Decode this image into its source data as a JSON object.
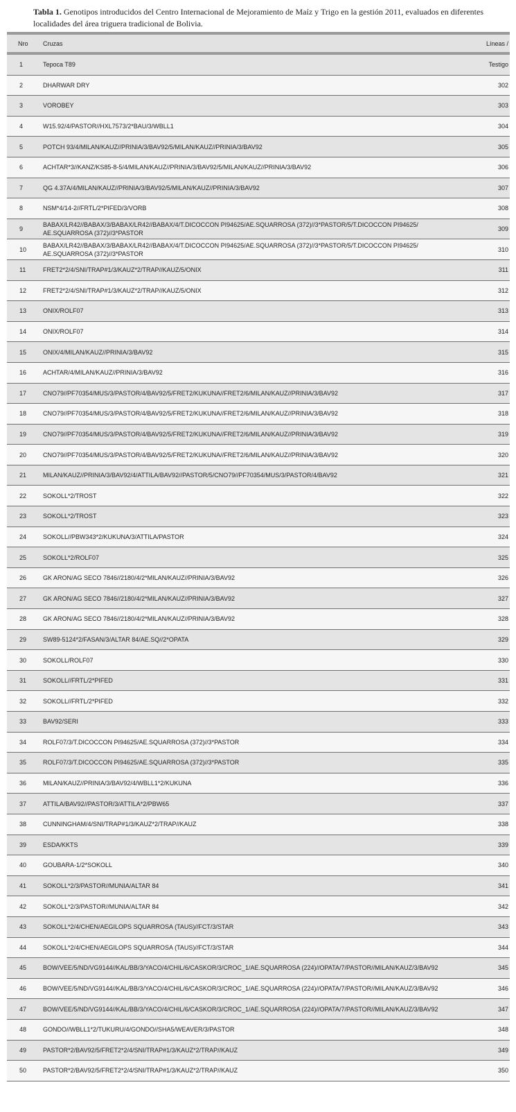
{
  "caption": {
    "label": "Tabla 1.",
    "text": " Genotipos introducidos del Centro Internacional de Mejoramiento de Maíz y Trigo en la gestión 2011, evaluados en diferentes localidades del área triguera tradicional de Bolivia."
  },
  "table": {
    "headers": [
      "Nro",
      "Cruzas",
      "Líneas /"
    ],
    "rows": [
      [
        "1",
        "Tepoca T89",
        "Testigo"
      ],
      [
        "2",
        "DHARWAR DRY",
        "302"
      ],
      [
        "3",
        "VOROBEY",
        "303"
      ],
      [
        "4",
        "W15.92/4/PASTOR//HXL7573/2*BAU/3/WBLL1",
        "304"
      ],
      [
        "5",
        "POTCH 93/4/MILAN/KAUZ//PRINIA/3/BAV92/5/MILAN/KAUZ//PRINIA/3/BAV92",
        "305"
      ],
      [
        "6",
        "ACHTAR*3//KANZ/KS85-8-5/4/MILAN/KAUZ//PRINIA/3/BAV92/5/MILAN/KAUZ//PRINIA/3/BAV92",
        "306"
      ],
      [
        "7",
        "QG 4.37A/4/MILAN/KAUZ//PRINIA/3/BAV92/5/MILAN/KAUZ//PRINIA/3/BAV92",
        "307"
      ],
      [
        "8",
        "NSM*4/14-2//FRTL/2*PIFED/3/VORB",
        "308"
      ],
      [
        "9",
        "BABAX/LR42//BABAX/3/BABAX/LR42//BABAX/4/T.DICOCCON PI94625/AE.SQUARROSA (372)//3*PASTOR/5/T.DICOCCON PI94625/ AE.SQUARROSA (372)//3*PASTOR",
        "309"
      ],
      [
        "10",
        "BABAX/LR42//BABAX/3/BABAX/LR42//BABAX/4/T.DICOCCON PI94625/AE.SQUARROSA (372)//3*PASTOR/5/T.DICOCCON PI94625/ AE.SQUARROSA (372)//3*PASTOR",
        "310"
      ],
      [
        "11",
        "FRET2*2/4/SNI/TRAP#1/3/KAUZ*2/TRAP//KAUZ/5/ONIX",
        "311"
      ],
      [
        "12",
        "FRET2*2/4/SNI/TRAP#1/3/KAUZ*2/TRAP//KAUZ/5/ONIX",
        "312"
      ],
      [
        "13",
        "ONIX/ROLF07",
        "313"
      ],
      [
        "14",
        "ONIX/ROLF07",
        "314"
      ],
      [
        "15",
        "ONIX/4/MILAN/KAUZ//PRINIA/3/BAV92",
        "315"
      ],
      [
        "16",
        "ACHTAR/4/MILAN/KAUZ//PRINIA/3/BAV92",
        "316"
      ],
      [
        "17",
        "CNO79//PF70354/MUS/3/PASTOR/4/BAV92/5/FRET2/KUKUNA//FRET2/6/MILAN/KAUZ//PRINIA/3/BAV92",
        "317"
      ],
      [
        "18",
        "CNO79//PF70354/MUS/3/PASTOR/4/BAV92/5/FRET2/KUKUNA//FRET2/6/MILAN/KAUZ//PRINIA/3/BAV92",
        "318"
      ],
      [
        "19",
        "CNO79//PF70354/MUS/3/PASTOR/4/BAV92/5/FRET2/KUKUNA//FRET2/6/MILAN/KAUZ//PRINIA/3/BAV92",
        "319"
      ],
      [
        "20",
        "CNO79//PF70354/MUS/3/PASTOR/4/BAV92/5/FRET2/KUKUNA//FRET2/6/MILAN/KAUZ//PRINIA/3/BAV92",
        "320"
      ],
      [
        "21",
        "MILAN/KAUZ//PRINIA/3/BAV92/4/ATTILA/BAV92//PASTOR/5/CNO79//PF70354/MUS/3/PASTOR/4/BAV92",
        "321"
      ],
      [
        "22",
        "SOKOLL*2/TROST",
        "322"
      ],
      [
        "23",
        "SOKOLL*2/TROST",
        "323"
      ],
      [
        "24",
        "SOKOLL//PBW343*2/KUKUNA/3/ATTILA/PASTOR",
        "324"
      ],
      [
        "25",
        "SOKOLL*2/ROLF07",
        "325"
      ],
      [
        "26",
        "GK ARON/AG SECO 7846//2180/4/2*MILAN/KAUZ//PRINIA/3/BAV92",
        "326"
      ],
      [
        "27",
        "GK ARON/AG SECO 7846//2180/4/2*MILAN/KAUZ//PRINIA/3/BAV92",
        "327"
      ],
      [
        "28",
        "GK ARON/AG SECO 7846//2180/4/2*MILAN/KAUZ//PRINIA/3/BAV92",
        "328"
      ],
      [
        "29",
        "SW89-5124*2/FASAN/3/ALTAR 84/AE.SQ//2*OPATA",
        "329"
      ],
      [
        "30",
        "SOKOLL/ROLF07",
        "330"
      ],
      [
        "31",
        "SOKOLL//FRTL/2*PIFED",
        "331"
      ],
      [
        "32",
        "SOKOLL//FRTL/2*PIFED",
        "332"
      ],
      [
        "33",
        "BAV92/SERI",
        "333"
      ],
      [
        "34",
        "ROLF07/3/T.DICOCCON PI94625/AE.SQUARROSA (372)//3*PASTOR",
        "334"
      ],
      [
        "35",
        "ROLF07/3/T.DICOCCON PI94625/AE.SQUARROSA (372)//3*PASTOR",
        "335"
      ],
      [
        "36",
        "MILAN/KAUZ//PRINIA/3/BAV92/4/WBLL1*2/KUKUNA",
        "336"
      ],
      [
        "37",
        "ATTILA/BAV92//PASTOR/3/ATTILA*2/PBW65",
        "337"
      ],
      [
        "38",
        "CUNNINGHAM/4/SNI/TRAP#1/3/KAUZ*2/TRAP//KAUZ",
        "338"
      ],
      [
        "39",
        "ESDA/KKTS",
        "339"
      ],
      [
        "40",
        "GOUBARA-1/2*SOKOLL",
        "340"
      ],
      [
        "41",
        "SOKOLL*2/3/PASTOR//MUNIA/ALTAR 84",
        "341"
      ],
      [
        "42",
        "SOKOLL*2/3/PASTOR//MUNIA/ALTAR 84",
        "342"
      ],
      [
        "43",
        "SOKOLL*2/4/CHEN/AEGILOPS SQUARROSA (TAUS)//FCT/3/STAR",
        "343"
      ],
      [
        "44",
        "SOKOLL*2/4/CHEN/AEGILOPS SQUARROSA (TAUS)//FCT/3/STAR",
        "344"
      ],
      [
        "45",
        "BOW/VEE/5/ND/VG9144//KAL/BB/3/YACO/4/CHIL/6/CASKOR/3/CROC_1/AE.SQUARROSA (224)//OPATA/7/PASTOR//MILAN/KAUZ/3/BAV92",
        "345"
      ],
      [
        "46",
        "BOW/VEE/5/ND/VG9144//KAL/BB/3/YACO/4/CHIL/6/CASKOR/3/CROC_1/AE.SQUARROSA (224)//OPATA/7/PASTOR//MILAN/KAUZ/3/BAV92",
        "346"
      ],
      [
        "47",
        "BOW/VEE/5/ND/VG9144//KAL/BB/3/YACO/4/CHIL/6/CASKOR/3/CROC_1/AE.SQUARROSA (224)//OPATA/7/PASTOR//MILAN/KAUZ/3/BAV92",
        "347"
      ],
      [
        "48",
        "GONDO//WBLL1*2/TUKURU/4/GONDO//SHA5/WEAVER/3/PASTOR",
        "348"
      ],
      [
        "49",
        "PASTOR*2/BAV92/5/FRET2*2/4/SNI/TRAP#1/3/KAUZ*2/TRAP//KAUZ",
        "349"
      ],
      [
        "50",
        "PASTOR*2/BAV92/5/FRET2*2/4/SNI/TRAP#1/3/KAUZ*2/TRAP//KAUZ",
        "350"
      ]
    ]
  }
}
